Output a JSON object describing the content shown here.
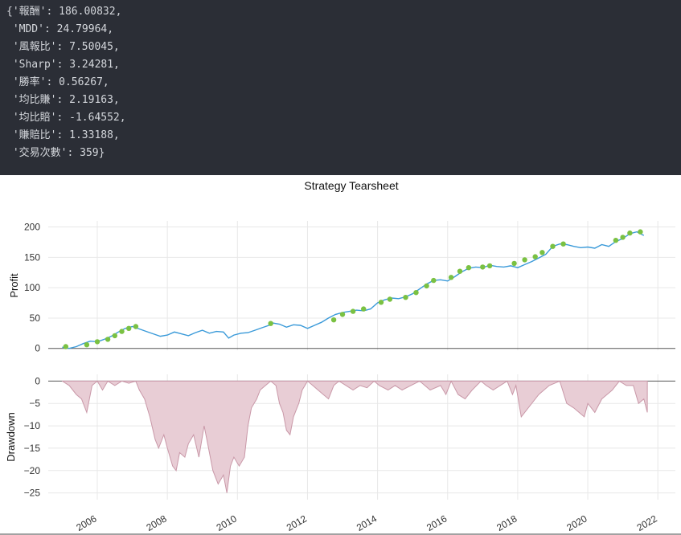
{
  "output": {
    "lines": [
      "{'報酬': 186.00832,",
      " 'MDD': 24.79964,",
      " '風報比': 7.50045,",
      " 'Sharp': 3.24281,",
      " '勝率': 0.56267,",
      " '均比賺': 2.19163,",
      " '均比賠': -1.64552,",
      " '賺賠比': 1.33188,",
      " '交易次數': 359}"
    ]
  },
  "chart_data": {
    "title": "Strategy Tearsheet",
    "x_tick_labels": [
      "2006",
      "2008",
      "2010",
      "2012",
      "2014",
      "2016",
      "2018",
      "2020",
      "2022"
    ],
    "xlim": [
      2004.6,
      2022.5
    ],
    "colors": {
      "profit_line": "#3a9ad9",
      "trade_markers": "#7ac142",
      "drawdown_fill": "#e8cdd5",
      "drawdown_edge": "#c998a8",
      "grid": "#e8e8e8"
    },
    "panels": [
      {
        "type": "line",
        "ylabel": "Profit",
        "ylim": [
          -3,
          210
        ],
        "yticks": [
          0,
          50,
          100,
          150,
          200
        ],
        "series": [
          {
            "x": [
              2005.0,
              2005.2,
              2005.4,
              2005.6,
              2005.8,
              2006.0,
              2006.2,
              2006.4,
              2006.6,
              2006.8,
              2007.0,
              2007.2,
              2007.4,
              2007.6,
              2007.8,
              2008.0,
              2008.2,
              2008.4,
              2008.6,
              2008.8,
              2009.0,
              2009.2,
              2009.4,
              2009.6,
              2009.75,
              2009.9,
              2010.1,
              2010.3,
              2010.5,
              2010.7,
              2010.9,
              2011.0,
              2011.2,
              2011.4,
              2011.6,
              2011.8,
              2012.0,
              2012.2,
              2012.4,
              2012.6,
              2012.8,
              2013.0,
              2013.2,
              2013.4,
              2013.6,
              2013.8,
              2014.0,
              2014.2,
              2014.4,
              2014.6,
              2014.8,
              2015.0,
              2015.2,
              2015.4,
              2015.6,
              2015.8,
              2016.0,
              2016.2,
              2016.4,
              2016.6,
              2016.8,
              2017.0,
              2017.2,
              2017.4,
              2017.6,
              2017.8,
              2018.0,
              2018.2,
              2018.4,
              2018.6,
              2018.8,
              2019.0,
              2019.2,
              2019.4,
              2019.6,
              2019.8,
              2020.0,
              2020.2,
              2020.4,
              2020.6,
              2020.8,
              2021.0,
              2021.2,
              2021.4,
              2021.6
            ],
            "values": [
              2,
              0,
              3,
              8,
              12,
              11,
              15,
              20,
              27,
              33,
              36,
              32,
              28,
              24,
              20,
              22,
              27,
              24,
              21,
              26,
              30,
              25,
              28,
              27,
              17,
              22,
              25,
              26,
              30,
              34,
              38,
              42,
              40,
              35,
              39,
              38,
              33,
              38,
              43,
              50,
              56,
              59,
              61,
              63,
              62,
              65,
              75,
              80,
              83,
              82,
              85,
              90,
              98,
              106,
              112,
              113,
              111,
              118,
              126,
              132,
              134,
              133,
              137,
              135,
              134,
              136,
              133,
              138,
              143,
              149,
              155,
              168,
              172,
              171,
              168,
              166,
              167,
              165,
              171,
              168,
              176,
              181,
              189,
              192,
              186
            ],
            "trades": [
              [
                2005.1,
                3
              ],
              [
                2005.7,
                6
              ],
              [
                2006.0,
                11
              ],
              [
                2006.3,
                15
              ],
              [
                2006.5,
                21
              ],
              [
                2006.7,
                28
              ],
              [
                2006.9,
                33
              ],
              [
                2007.1,
                36
              ],
              [
                2010.95,
                41
              ],
              [
                2012.75,
                47
              ],
              [
                2013.0,
                56
              ],
              [
                2013.3,
                61
              ],
              [
                2013.6,
                65
              ],
              [
                2014.1,
                76
              ],
              [
                2014.35,
                81
              ],
              [
                2014.8,
                84
              ],
              [
                2015.1,
                92
              ],
              [
                2015.4,
                103
              ],
              [
                2015.6,
                112
              ],
              [
                2016.1,
                117
              ],
              [
                2016.35,
                127
              ],
              [
                2016.6,
                133
              ],
              [
                2017.0,
                134
              ],
              [
                2017.2,
                136
              ],
              [
                2017.9,
                140
              ],
              [
                2018.2,
                146
              ],
              [
                2018.5,
                151
              ],
              [
                2018.7,
                158
              ],
              [
                2019.0,
                168
              ],
              [
                2019.3,
                172
              ],
              [
                2020.8,
                178
              ],
              [
                2021.0,
                183
              ],
              [
                2021.2,
                190
              ],
              [
                2021.5,
                192
              ]
            ]
          }
        ]
      },
      {
        "type": "area",
        "ylabel": "Drawdown",
        "ylim": [
          -26.5,
          1.5
        ],
        "yticks": [
          0,
          -5,
          -10,
          -15,
          -20,
          -25
        ],
        "series": [
          {
            "x": [
              2005.0,
              2005.2,
              2005.4,
              2005.55,
              2005.7,
              2005.85,
              2006.0,
              2006.15,
              2006.3,
              2006.5,
              2006.7,
              2006.9,
              2007.1,
              2007.2,
              2007.35,
              2007.5,
              2007.65,
              2007.75,
              2007.9,
              2008.0,
              2008.15,
              2008.25,
              2008.35,
              2008.5,
              2008.6,
              2008.75,
              2008.9,
              2009.05,
              2009.15,
              2009.3,
              2009.45,
              2009.6,
              2009.7,
              2009.8,
              2009.9,
              2010.05,
              2010.2,
              2010.3,
              2010.4,
              2010.55,
              2010.65,
              2010.8,
              2010.95,
              2011.1,
              2011.2,
              2011.3,
              2011.4,
              2011.5,
              2011.6,
              2011.75,
              2011.85,
              2012.0,
              2012.15,
              2012.3,
              2012.45,
              2012.6,
              2012.75,
              2012.9,
              2013.1,
              2013.3,
              2013.5,
              2013.7,
              2013.9,
              2014.05,
              2014.3,
              2014.5,
              2014.7,
              2014.95,
              2015.2,
              2015.5,
              2015.8,
              2015.95,
              2016.1,
              2016.3,
              2016.5,
              2016.7,
              2016.95,
              2017.1,
              2017.3,
              2017.5,
              2017.7,
              2017.85,
              2017.95,
              2018.1,
              2018.3,
              2018.6,
              2018.9,
              2019.2,
              2019.4,
              2019.6,
              2019.75,
              2019.9,
              2020.0,
              2020.2,
              2020.4,
              2020.55,
              2020.7,
              2020.9,
              2021.1,
              2021.3,
              2021.45,
              2021.6,
              2021.7
            ],
            "values": [
              0,
              -1,
              -3,
              -4,
              -7,
              -1,
              0,
              -2,
              0,
              -1,
              0,
              -0.5,
              0,
              -2,
              -4,
              -8,
              -13,
              -15,
              -12,
              -15,
              -19,
              -20,
              -16,
              -17,
              -14,
              -12,
              -17,
              -10,
              -14,
              -20,
              -23,
              -21,
              -25,
              -19,
              -17,
              -19,
              -17,
              -10,
              -6,
              -4,
              -2,
              -1,
              0,
              -1,
              -5,
              -7,
              -11,
              -12,
              -8,
              -5,
              -2,
              0,
              -1,
              -2,
              -3,
              -4,
              -1,
              0,
              -1,
              -2,
              -1,
              -1.5,
              0,
              -1,
              -2,
              -1,
              -2,
              -1,
              0,
              -2,
              -1,
              -3,
              0,
              -3,
              -4,
              -2,
              0,
              -1,
              -2,
              -1,
              0,
              -3,
              -1,
              -8,
              -6,
              -3,
              -1,
              0,
              -5,
              -6,
              -7,
              -8,
              -5,
              -7,
              -4,
              -3,
              -2,
              0,
              -1,
              -1,
              -5,
              -4,
              -7
            ]
          }
        ]
      }
    ]
  }
}
